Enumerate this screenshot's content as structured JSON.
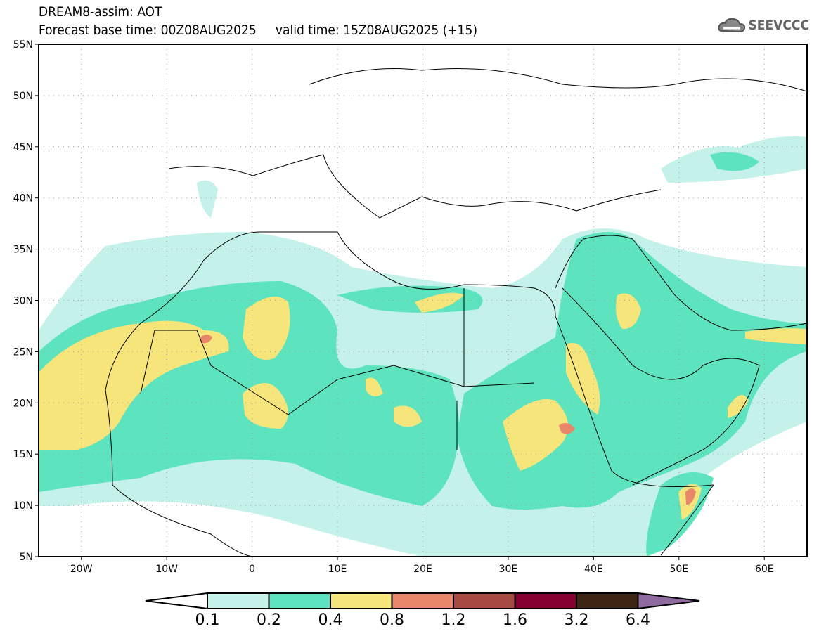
{
  "header": {
    "title": "DREAM8-assim: AOT",
    "subtitle": "Forecast base time: 00Z08AUG2025     valid time: 15Z08AUG2025 (+15)",
    "logo_text": "SEEVCCC"
  },
  "map": {
    "lat_labels": [
      "55N",
      "50N",
      "45N",
      "40N",
      "35N",
      "30N",
      "25N",
      "20N",
      "15N",
      "10N",
      "5N"
    ],
    "lon_labels": [
      "20W",
      "10W",
      "0",
      "10E",
      "20E",
      "30E",
      "40E",
      "50E",
      "60E"
    ],
    "lon_range": [
      -25,
      65
    ],
    "lat_range": [
      5,
      55
    ]
  },
  "colorbar": {
    "labels": [
      "0.1",
      "0.2",
      "0.4",
      "0.8",
      "1.2",
      "1.6",
      "3.2",
      "6.4"
    ],
    "colors": [
      "#ffffff",
      "#c4f2ea",
      "#5ee3bf",
      "#f6e57a",
      "#e9876a",
      "#a84a41",
      "#850030",
      "#3c2513",
      "#8f6aa0"
    ]
  }
}
